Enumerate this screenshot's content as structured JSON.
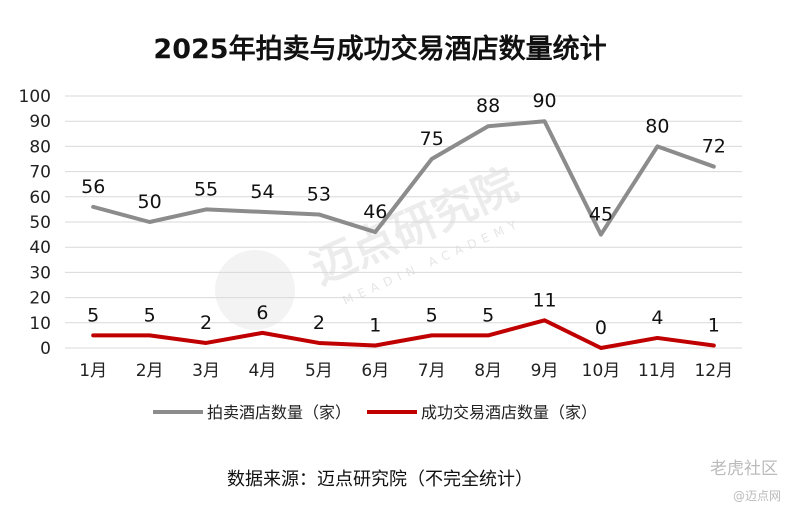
{
  "chart_data": {
    "type": "line",
    "title": "2025年拍卖与成功交易酒店数量统计",
    "categories": [
      "1月",
      "2月",
      "3月",
      "4月",
      "5月",
      "6月",
      "7月",
      "8月",
      "9月",
      "10月",
      "11月",
      "12月"
    ],
    "ylim": [
      0,
      100
    ],
    "yticks": [
      0,
      10,
      20,
      30,
      40,
      50,
      60,
      70,
      80,
      90,
      100
    ],
    "grid": true,
    "legend_position": "bottom",
    "series": [
      {
        "name": "拍卖酒店数量（家）",
        "color": "#8c8c8c",
        "values": [
          56,
          50,
          55,
          54,
          53,
          46,
          75,
          88,
          90,
          45,
          80,
          72
        ]
      },
      {
        "name": "成功交易酒店数量（家）",
        "color": "#c00000",
        "values": [
          5,
          5,
          2,
          6,
          2,
          1,
          5,
          5,
          11,
          0,
          4,
          1
        ]
      }
    ]
  },
  "source_note": "数据来源：迈点研究院（不完全统计）",
  "watermark": {
    "text": "迈点研究院",
    "sub": "MEADIN ACADEMY"
  },
  "corner_mark": {
    "main": "老虎社区",
    "sub": "@迈点网"
  }
}
